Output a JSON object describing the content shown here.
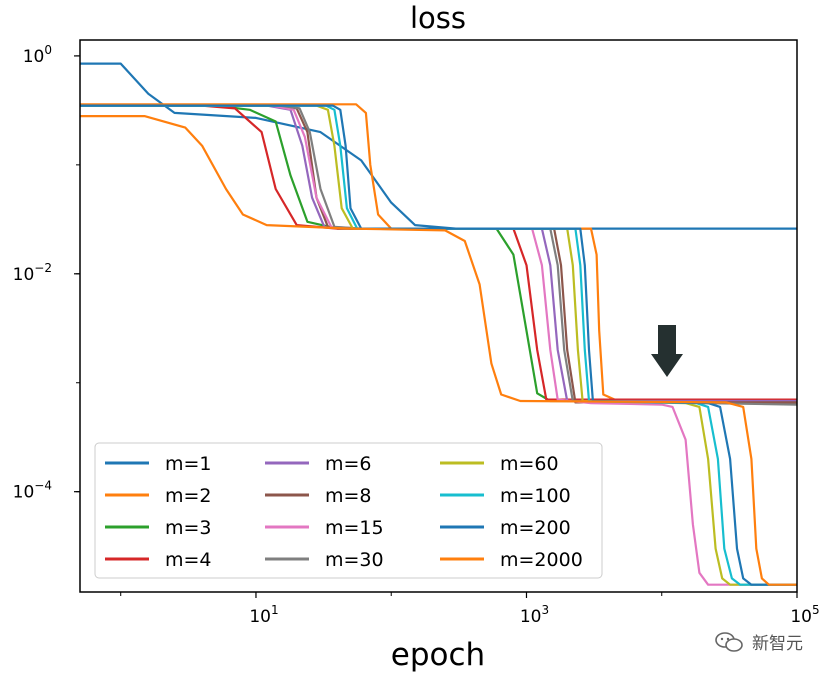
{
  "chart_data": {
    "type": "line",
    "title": "loss",
    "xlabel": "epoch",
    "ylabel": "",
    "xscale": "log",
    "yscale": "log",
    "xlim": [
      0.5,
      100000
    ],
    "ylim": [
      1.2e-05,
      1.4
    ],
    "xticks": [
      {
        "value": 10,
        "label": "10^1"
      },
      {
        "value": 1000,
        "label": "10^3"
      },
      {
        "value": 100000,
        "label": "10^5"
      }
    ],
    "yticks": [
      {
        "value": 1,
        "label": "10^0"
      },
      {
        "value": 0.01,
        "label": "10^-2"
      },
      {
        "value": 0.0001,
        "label": "10^-4"
      }
    ],
    "legend_position": "lower-left",
    "legend_columns": 3,
    "series": [
      {
        "name": "m=1",
        "color": "#1f77b4",
        "points": [
          [
            0.5,
            0.85
          ],
          [
            1,
            0.85
          ],
          [
            1.6,
            0.45
          ],
          [
            2.5,
            0.3
          ],
          [
            10,
            0.27
          ],
          [
            30,
            0.2
          ],
          [
            60,
            0.11
          ],
          [
            100,
            0.045
          ],
          [
            150,
            0.028
          ],
          [
            300,
            0.026
          ],
          [
            100000,
            0.026
          ]
        ]
      },
      {
        "name": "m=2",
        "color": "#ff7f0e",
        "points": [
          [
            0.5,
            0.36
          ],
          [
            55,
            0.36
          ],
          [
            65,
            0.3
          ],
          [
            70,
            0.1
          ],
          [
            80,
            0.035
          ],
          [
            100,
            0.026
          ],
          [
            3000,
            0.026
          ],
          [
            3300,
            0.015
          ],
          [
            3450,
            0.003
          ],
          [
            3700,
            0.00078
          ],
          [
            4500,
            0.0007
          ],
          [
            100000,
            0.0007
          ]
        ]
      },
      {
        "name": "m=3",
        "color": "#2ca02c",
        "points": [
          [
            0.5,
            0.35
          ],
          [
            5,
            0.35
          ],
          [
            9,
            0.32
          ],
          [
            14,
            0.25
          ],
          [
            18,
            0.08
          ],
          [
            24,
            0.03
          ],
          [
            40,
            0.026
          ],
          [
            600,
            0.026
          ],
          [
            800,
            0.015
          ],
          [
            1000,
            0.003
          ],
          [
            1200,
            0.0008
          ],
          [
            1500,
            0.00068
          ],
          [
            100000,
            0.00068
          ]
        ]
      },
      {
        "name": "m=4",
        "color": "#d62728",
        "points": [
          [
            0.5,
            0.35
          ],
          [
            4,
            0.35
          ],
          [
            7,
            0.33
          ],
          [
            11,
            0.2
          ],
          [
            14,
            0.06
          ],
          [
            20,
            0.028
          ],
          [
            40,
            0.026
          ],
          [
            800,
            0.026
          ],
          [
            1000,
            0.012
          ],
          [
            1200,
            0.002
          ],
          [
            1400,
            0.0007
          ],
          [
            100000,
            0.0007
          ]
        ]
      },
      {
        "name": "m=6",
        "color": "#9467bd",
        "points": [
          [
            0.5,
            0.35
          ],
          [
            12,
            0.35
          ],
          [
            18,
            0.32
          ],
          [
            22,
            0.15
          ],
          [
            26,
            0.05
          ],
          [
            32,
            0.027
          ],
          [
            50,
            0.026
          ],
          [
            1300,
            0.026
          ],
          [
            1500,
            0.012
          ],
          [
            1700,
            0.002
          ],
          [
            2000,
            0.00068
          ],
          [
            100000,
            0.00068
          ]
        ]
      },
      {
        "name": "m=8",
        "color": "#8c564b",
        "points": [
          [
            0.5,
            0.35
          ],
          [
            14,
            0.35
          ],
          [
            20,
            0.33
          ],
          [
            24,
            0.2
          ],
          [
            28,
            0.05
          ],
          [
            34,
            0.027
          ],
          [
            50,
            0.026
          ],
          [
            1600,
            0.026
          ],
          [
            1800,
            0.012
          ],
          [
            2000,
            0.002
          ],
          [
            2300,
            0.00066
          ],
          [
            100000,
            0.00066
          ]
        ]
      },
      {
        "name": "m=15",
        "color": "#e377c2",
        "points": [
          [
            0.5,
            0.35
          ],
          [
            13,
            0.35
          ],
          [
            19,
            0.32
          ],
          [
            23,
            0.18
          ],
          [
            28,
            0.05
          ],
          [
            36,
            0.027
          ],
          [
            60,
            0.026
          ],
          [
            1100,
            0.026
          ],
          [
            1300,
            0.012
          ],
          [
            1500,
            0.002
          ],
          [
            1700,
            0.0007
          ],
          [
            3000,
            0.00065
          ],
          [
            10000,
            0.00063
          ],
          [
            12000,
            0.0006
          ],
          [
            15000,
            0.0003
          ],
          [
            17000,
            5e-05
          ],
          [
            19000,
            1.8e-05
          ],
          [
            22000,
            1.4e-05
          ],
          [
            100000,
            1.4e-05
          ]
        ]
      },
      {
        "name": "m=30",
        "color": "#7f7f7f",
        "points": [
          [
            0.5,
            0.35
          ],
          [
            15,
            0.35
          ],
          [
            21,
            0.33
          ],
          [
            25,
            0.2
          ],
          [
            30,
            0.06
          ],
          [
            38,
            0.027
          ],
          [
            60,
            0.026
          ],
          [
            1500,
            0.026
          ],
          [
            1700,
            0.012
          ],
          [
            1900,
            0.002
          ],
          [
            2200,
            0.00068
          ],
          [
            100000,
            0.00063
          ]
        ]
      },
      {
        "name": "m=60",
        "color": "#bcbd22",
        "points": [
          [
            0.5,
            0.35
          ],
          [
            28,
            0.35
          ],
          [
            34,
            0.32
          ],
          [
            38,
            0.15
          ],
          [
            43,
            0.04
          ],
          [
            52,
            0.026
          ],
          [
            2000,
            0.026
          ],
          [
            2200,
            0.012
          ],
          [
            2400,
            0.002
          ],
          [
            2600,
            0.00068
          ],
          [
            15000,
            0.00065
          ],
          [
            19000,
            0.0006
          ],
          [
            22000,
            0.0002
          ],
          [
            25000,
            3e-05
          ],
          [
            28000,
            1.6e-05
          ],
          [
            32000,
            1.4e-05
          ],
          [
            100000,
            1.4e-05
          ]
        ]
      },
      {
        "name": "m=100",
        "color": "#17becf",
        "points": [
          [
            0.5,
            0.35
          ],
          [
            33,
            0.35
          ],
          [
            38,
            0.32
          ],
          [
            42,
            0.15
          ],
          [
            47,
            0.04
          ],
          [
            56,
            0.026
          ],
          [
            2300,
            0.026
          ],
          [
            2500,
            0.012
          ],
          [
            2700,
            0.002
          ],
          [
            2900,
            0.00068
          ],
          [
            18000,
            0.00065
          ],
          [
            22000,
            0.0006
          ],
          [
            26000,
            0.0002
          ],
          [
            29000,
            3e-05
          ],
          [
            33000,
            1.6e-05
          ],
          [
            38000,
            1.4e-05
          ],
          [
            100000,
            1.4e-05
          ]
        ]
      },
      {
        "name": "m=200",
        "color": "#1f77b4",
        "points": [
          [
            0.5,
            0.35
          ],
          [
            37,
            0.35
          ],
          [
            42,
            0.32
          ],
          [
            46,
            0.15
          ],
          [
            50,
            0.04
          ],
          [
            60,
            0.026
          ],
          [
            2500,
            0.026
          ],
          [
            2700,
            0.012
          ],
          [
            2900,
            0.002
          ],
          [
            3100,
            0.00068
          ],
          [
            22000,
            0.00065
          ],
          [
            27000,
            0.0006
          ],
          [
            32000,
            0.0002
          ],
          [
            36000,
            3e-05
          ],
          [
            40000,
            1.6e-05
          ],
          [
            46000,
            1.4e-05
          ],
          [
            100000,
            1.4e-05
          ]
        ]
      },
      {
        "name": "m=2000",
        "color": "#ff7f0e",
        "points": [
          [
            0.5,
            0.28
          ],
          [
            1.5,
            0.28
          ],
          [
            3,
            0.22
          ],
          [
            4,
            0.15
          ],
          [
            6,
            0.06
          ],
          [
            8,
            0.035
          ],
          [
            12,
            0.028
          ],
          [
            50,
            0.026
          ],
          [
            250,
            0.025
          ],
          [
            350,
            0.02
          ],
          [
            450,
            0.008
          ],
          [
            550,
            0.0015
          ],
          [
            650,
            0.00078
          ],
          [
            900,
            0.00068
          ],
          [
            30000,
            0.00066
          ],
          [
            40000,
            0.0006
          ],
          [
            46000,
            0.0002
          ],
          [
            50000,
            3e-05
          ],
          [
            55000,
            1.6e-05
          ],
          [
            62000,
            1.4e-05
          ],
          [
            100000,
            1.4e-05
          ]
        ]
      }
    ]
  },
  "annotations": {
    "arrow": "down-arrow",
    "arrow_color": "#253030"
  },
  "watermark": {
    "text": "新智元"
  }
}
